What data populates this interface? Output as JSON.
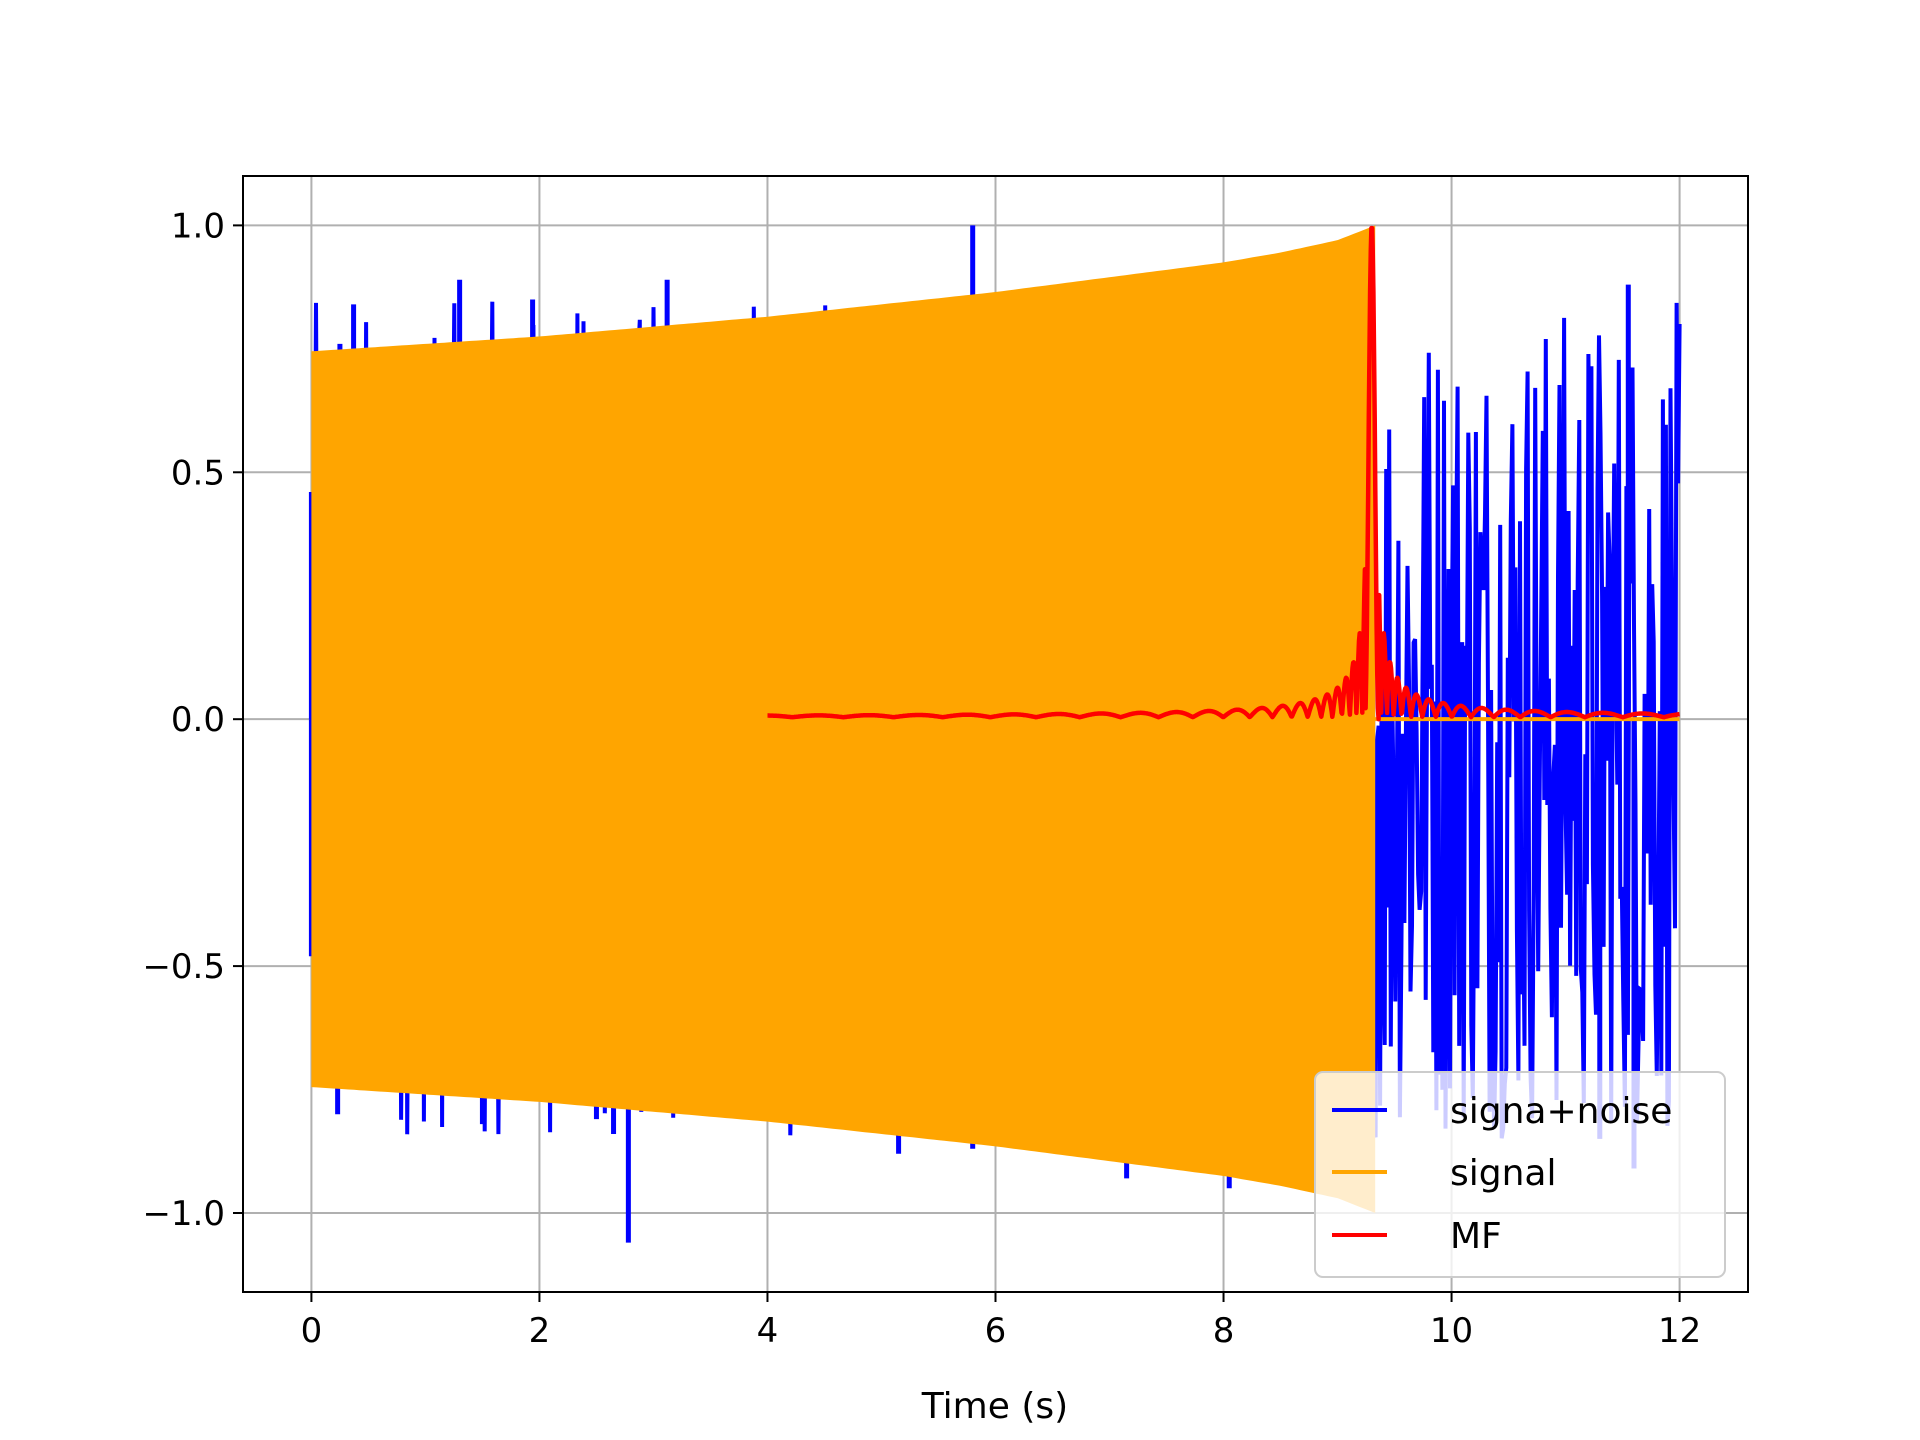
{
  "chart_data": {
    "type": "line",
    "title": "",
    "xlabel": "Time (s)",
    "ylabel": "",
    "xlim": [
      -0.6,
      12.6
    ],
    "ylim": [
      -1.16,
      1.1
    ],
    "xticks": [
      0,
      2,
      4,
      6,
      8,
      10,
      12
    ],
    "xtick_labels": [
      "0",
      "2",
      "4",
      "6",
      "8",
      "10",
      "12"
    ],
    "yticks": [
      -1.0,
      -0.5,
      0.0,
      0.5,
      1.0
    ],
    "ytick_labels": [
      "−1.0",
      "−0.5",
      "0.0",
      "0.5",
      "1.0"
    ],
    "grid": true,
    "legend": {
      "position": "lower-right"
    },
    "series": [
      {
        "name": "signa+noise",
        "color": "#0000ff",
        "time_range": [
          0,
          12
        ],
        "noise_amplitude": 0.85,
        "spikes": [
          {
            "x": 0.0,
            "y": 0.46
          },
          {
            "x": 0.0,
            "y": -0.48
          },
          {
            "x": 0.25,
            "y": 0.76
          },
          {
            "x": 0.23,
            "y": -0.8
          },
          {
            "x": 0.37,
            "y": 0.84
          },
          {
            "x": 1.3,
            "y": 0.89
          },
          {
            "x": 1.5,
            "y": -0.82
          },
          {
            "x": 1.94,
            "y": 0.85
          },
          {
            "x": 2.5,
            "y": -0.81
          },
          {
            "x": 2.65,
            "y": -0.84
          },
          {
            "x": 2.78,
            "y": -1.06
          },
          {
            "x": 3.12,
            "y": 0.89
          },
          {
            "x": 5.15,
            "y": -0.88
          },
          {
            "x": 5.8,
            "y": 1.0
          },
          {
            "x": 5.8,
            "y": -0.87
          },
          {
            "x": 7.15,
            "y": -0.93
          },
          {
            "x": 8.05,
            "y": -0.95
          },
          {
            "x": 11.3,
            "y": -0.85
          },
          {
            "x": 11.55,
            "y": 0.88
          },
          {
            "x": 11.6,
            "y": -0.91
          }
        ]
      },
      {
        "name": "signal",
        "color": "#ffa500",
        "time_range": [
          0,
          9.33
        ],
        "envelope": {
          "x": [
            0,
            1,
            2,
            3,
            4,
            5,
            6,
            7,
            8,
            8.5,
            9,
            9.33
          ],
          "y": [
            0.745,
            0.76,
            0.775,
            0.795,
            0.815,
            0.84,
            0.865,
            0.895,
            0.925,
            0.945,
            0.97,
            1.0
          ]
        }
      },
      {
        "name": "MF",
        "color": "#ff0000",
        "time_range": [
          4,
          12
        ],
        "peak": {
          "x": 9.3,
          "y": 1.0
        }
      }
    ]
  }
}
